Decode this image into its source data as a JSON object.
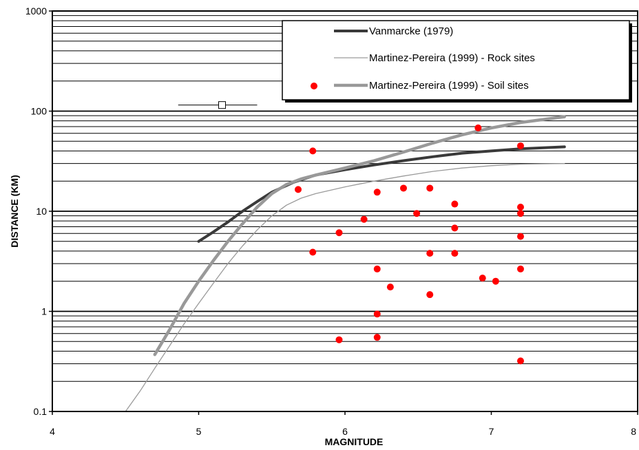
{
  "chart_data": {
    "type": "line",
    "title": "",
    "xlabel": "MAGNITUDE",
    "ylabel": "DISTANCE (KM)",
    "xlim": [
      4,
      8
    ],
    "ylim": [
      0.1,
      1000
    ],
    "yscale": "log",
    "grid": "horizontal",
    "legend_position": "top-right",
    "x_ticks": [
      "4",
      "5",
      "6",
      "7",
      "8"
    ],
    "y_ticks": [
      "0.1",
      "1",
      "10",
      "100",
      "1000"
    ],
    "series": [
      {
        "name": "Vanmarcke (1979)",
        "color": "#3a3a3a",
        "style": "thick-dark",
        "x": [
          5.0,
          5.1,
          5.2,
          5.3,
          5.4,
          5.5,
          5.65,
          5.8,
          6.0,
          6.2,
          6.4,
          6.6,
          6.8,
          7.0,
          7.2,
          7.5
        ],
        "y": [
          5,
          6.2,
          7.8,
          10,
          12.5,
          15.5,
          19.5,
          23,
          26,
          29,
          32,
          35,
          38,
          40,
          42,
          44
        ]
      },
      {
        "name": "Martinez-Pereira (1999) - Rock sites",
        "color": "#9a9a9a",
        "style": "thin-gray",
        "x": [
          4.5,
          4.6,
          4.7,
          4.8,
          4.9,
          5.0,
          5.1,
          5.2,
          5.3,
          5.4,
          5.5,
          5.6,
          5.7,
          5.8,
          6.0,
          6.2,
          6.4,
          6.6,
          6.8,
          7.0,
          7.2,
          7.5
        ],
        "y": [
          0.1,
          0.16,
          0.27,
          0.45,
          0.75,
          1.2,
          1.9,
          3.0,
          4.5,
          6.5,
          9,
          11.5,
          13.5,
          15,
          17.5,
          20,
          22.5,
          25,
          27,
          28.5,
          29.5,
          30
        ]
      },
      {
        "name": "Martinez-Pereira (1999) - Soil sites",
        "color": "#999999",
        "style": "thick-gray",
        "x": [
          4.7,
          4.8,
          4.9,
          5.0,
          5.1,
          5.2,
          5.3,
          5.4,
          5.5,
          5.6,
          5.7,
          5.8,
          6.0,
          6.2,
          6.4,
          6.6,
          6.8,
          7.0,
          7.2,
          7.5
        ],
        "y": [
          0.37,
          0.65,
          1.2,
          2.0,
          3.2,
          5.0,
          7.5,
          11,
          15,
          18.5,
          21,
          23,
          27,
          32,
          39,
          48,
          58,
          68,
          77,
          88
        ]
      }
    ],
    "points": {
      "color": "#ff0000",
      "x": [
        5.68,
        5.78,
        5.78,
        5.96,
        5.96,
        6.13,
        6.22,
        6.22,
        6.22,
        6.22,
        6.31,
        6.4,
        6.49,
        6.58,
        6.58,
        6.58,
        6.75,
        6.75,
        6.75,
        6.91,
        6.94,
        7.03,
        7.2,
        7.2,
        7.2,
        7.2,
        7.2,
        7.2
      ],
      "y": [
        16.5,
        40,
        3.9,
        6.1,
        0.52,
        8.3,
        15.5,
        2.65,
        0.94,
        0.55,
        1.75,
        17,
        9.5,
        17,
        3.8,
        1.47,
        11.8,
        6.8,
        3.8,
        68,
        2.15,
        2.0,
        45,
        11,
        9.5,
        5.6,
        2.65,
        0.32
      ]
    },
    "error_marker": {
      "x": 5.16,
      "y": 115,
      "x_low": 4.86,
      "x_high": 5.4
    }
  }
}
